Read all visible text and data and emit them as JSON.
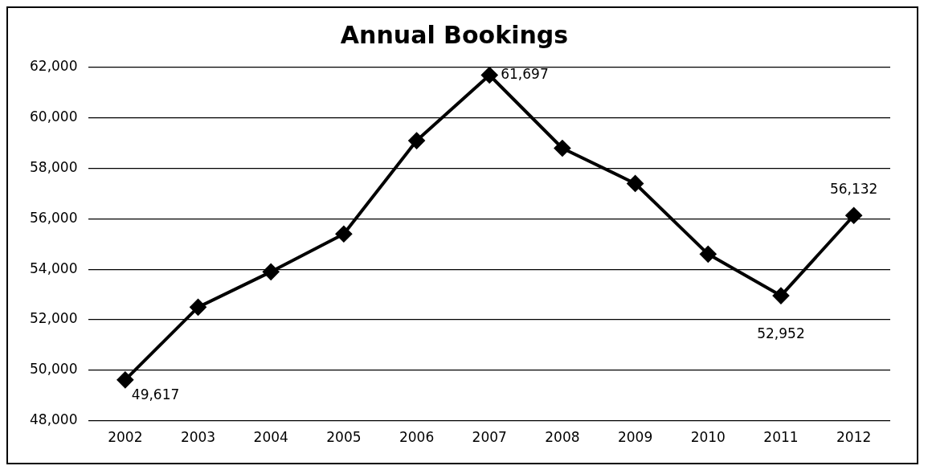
{
  "chart_data": {
    "type": "line",
    "title": "Annual Bookings",
    "categories": [
      "2002",
      "2003",
      "2004",
      "2005",
      "2006",
      "2007",
      "2008",
      "2009",
      "2010",
      "2011",
      "2012"
    ],
    "series": [
      {
        "color": "#000000",
        "values": [
          49617,
          52500,
          53900,
          55400,
          59100,
          61697,
          58800,
          57400,
          54600,
          52952,
          56132
        ],
        "value_labels": [
          "49,617",
          null,
          null,
          null,
          null,
          "61,697",
          null,
          null,
          null,
          "52,952",
          "56,132"
        ]
      }
    ],
    "ylim": [
      48000,
      62000
    ],
    "yticks": [
      {
        "value": 48000,
        "label": "48,000"
      },
      {
        "value": 50000,
        "label": "50,000"
      },
      {
        "value": 52000,
        "label": "52,000"
      },
      {
        "value": 54000,
        "label": "54,000"
      },
      {
        "value": 56000,
        "label": "56,000"
      },
      {
        "value": 58000,
        "label": "58,000"
      },
      {
        "value": 60000,
        "label": "60,000"
      },
      {
        "value": 62000,
        "label": "62,000"
      }
    ],
    "grid": "y",
    "legend": false,
    "marker": "diamond",
    "line_style": "solid"
  }
}
